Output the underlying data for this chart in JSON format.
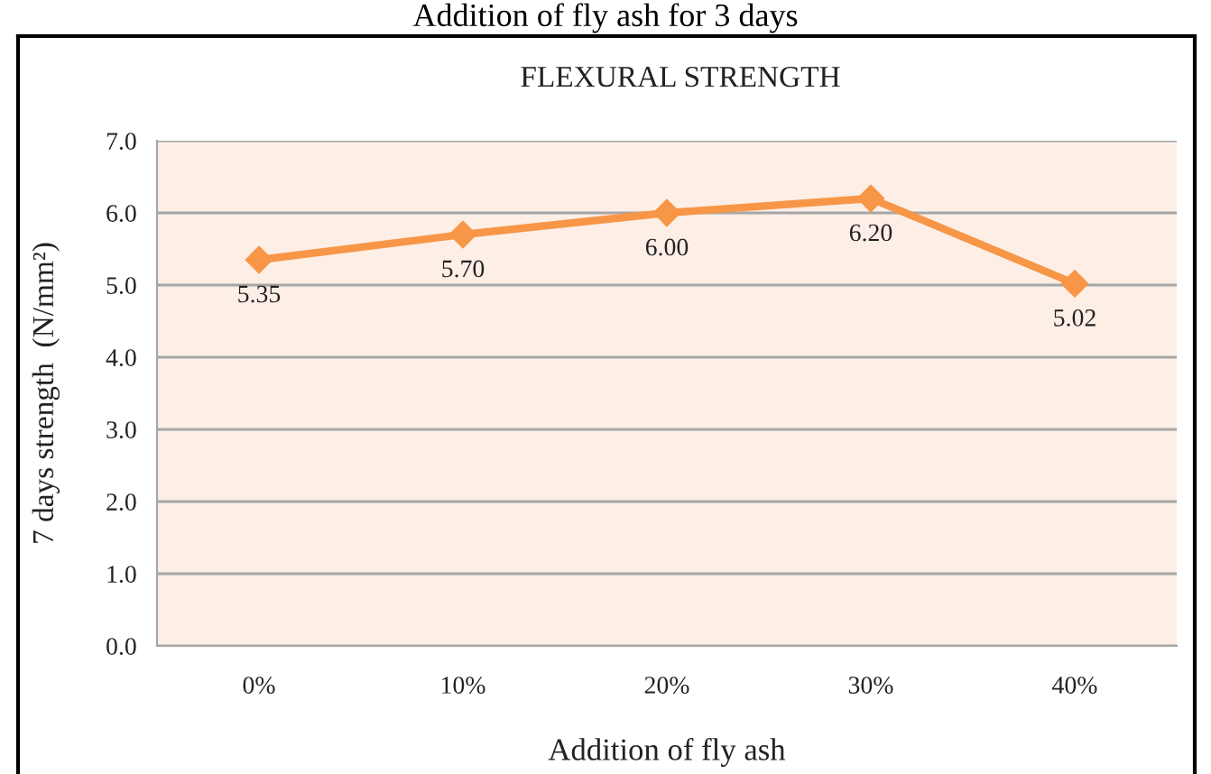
{
  "chart_data": {
    "type": "line",
    "title": "FLEXURAL STRENGTH",
    "xlabel": "Addition of fly ash",
    "ylabel": "7 days strength  (N/mm²)",
    "annotations": [
      "Addition of fly ash for 3 days"
    ],
    "categories": [
      "0%",
      "10%",
      "20%",
      "30%",
      "40%"
    ],
    "series": [
      {
        "color": "#f79646",
        "values": [
          5.35,
          5.7,
          6.0,
          6.2,
          5.02
        ],
        "value_labels": [
          "5.35",
          "5.70",
          "6.00",
          "6.20",
          "5.02"
        ]
      }
    ],
    "ylim": [
      0,
      7
    ],
    "yticks": [
      {
        "value": 0,
        "label": "0.0"
      },
      {
        "value": 1,
        "label": "1.0"
      },
      {
        "value": 2,
        "label": "2.0"
      },
      {
        "value": 3,
        "label": "3.0"
      },
      {
        "value": 4,
        "label": "4.0"
      },
      {
        "value": 5,
        "label": "5.0"
      },
      {
        "value": 6,
        "label": "6.0"
      },
      {
        "value": 7,
        "label": "7.0"
      }
    ],
    "grid": "y",
    "marker": "diamond",
    "line_style": "solid"
  }
}
